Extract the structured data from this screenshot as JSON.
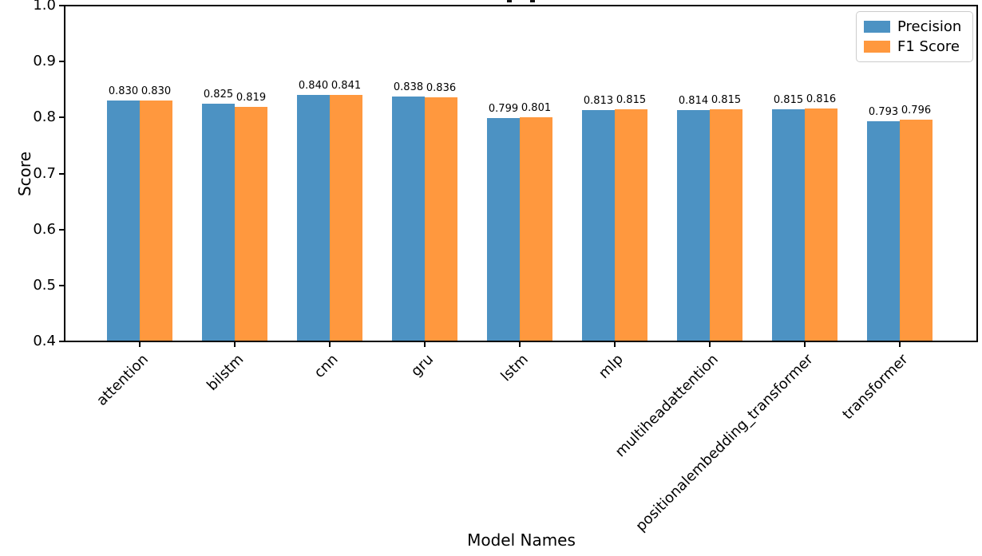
{
  "chart_data": {
    "type": "bar",
    "title": "",
    "title_note": "title clipped off top of screenshot",
    "xlabel": "Model Names",
    "ylabel": "Score",
    "ylim": [
      0.4,
      1.0
    ],
    "yticks": [
      1.0,
      0.9,
      0.8,
      0.7,
      0.6,
      0.5,
      0.4
    ],
    "categories": [
      "attention",
      "bilstm",
      "cnn",
      "gru",
      "lstm",
      "mlp",
      "multiheadattention",
      "positionalembedding_transformer",
      "transformer"
    ],
    "series": [
      {
        "name": "Precision",
        "color": "#4C92C3",
        "values": [
          0.83,
          0.825,
          0.84,
          0.838,
          0.799,
          0.813,
          0.814,
          0.815,
          0.793
        ]
      },
      {
        "name": "F1 Score",
        "color": "#FF983E",
        "values": [
          0.83,
          0.819,
          0.841,
          0.836,
          0.801,
          0.815,
          0.815,
          0.816,
          0.796
        ]
      }
    ],
    "value_label_decimals": 3,
    "legend_position": "upper-right",
    "grid": false,
    "axis_color": "#000000",
    "background_color": "#ffffff"
  }
}
